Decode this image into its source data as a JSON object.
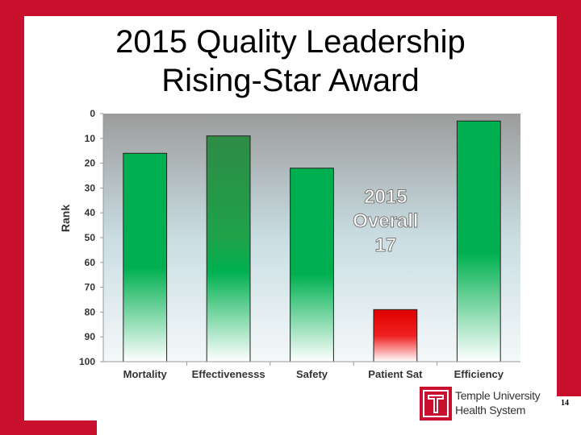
{
  "slide": {
    "title_line1": "2015 Quality Leadership",
    "title_line2": "Rising-Star Award",
    "page_number": "14",
    "logo_line1": "Temple University",
    "logo_line2": "Health System"
  },
  "colors": {
    "frame": "#c8102e",
    "bar_green": "#00b050",
    "bar_dark_green": "#2e8b45",
    "bar_red": "#e00000"
  },
  "chart_data": {
    "type": "bar",
    "categories": [
      "Mortality",
      "Effectivenesss",
      "Safety",
      "Patient Sat",
      "Efficiency"
    ],
    "values": [
      16,
      9,
      22,
      79,
      3
    ],
    "ylabel": "Rank",
    "ylim": [
      0,
      100
    ],
    "y_inverted": true,
    "y_ticks": [
      0,
      10,
      20,
      30,
      40,
      50,
      60,
      70,
      80,
      90,
      100
    ],
    "annotation": [
      "2015",
      "Overall",
      "17"
    ],
    "bar_styles": [
      "green",
      "dark-green",
      "green",
      "red",
      "green"
    ],
    "grid": false
  }
}
